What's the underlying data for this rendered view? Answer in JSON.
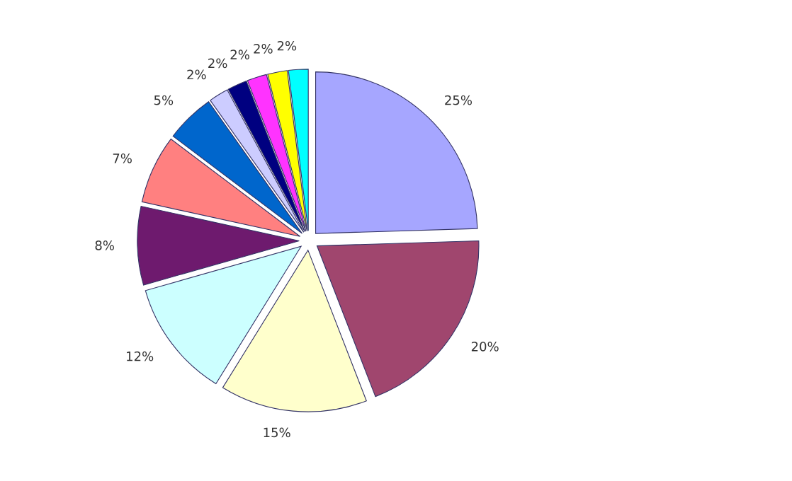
{
  "chart_data": {
    "type": "pie",
    "categories": [
      null,
      null,
      null,
      null,
      null,
      null,
      null,
      null,
      null,
      null,
      null,
      null
    ],
    "values": [
      25,
      20,
      15,
      12,
      8,
      7,
      5,
      2,
      2,
      2,
      2,
      2
    ],
    "value_labels": [
      "25%",
      "20%",
      "15%",
      "12%",
      "8%",
      "7%",
      "5%",
      "2%",
      "2%",
      "2%",
      "2%",
      "2%"
    ],
    "colors": [
      "#a6a6ff",
      "#a0466e",
      "#ffffcc",
      "#ccffff",
      "#6e1a6e",
      "#ff8080",
      "#0066cc",
      "#ccccff",
      "#000080",
      "#ff33ff",
      "#ffff00",
      "#00ffff"
    ]
  }
}
